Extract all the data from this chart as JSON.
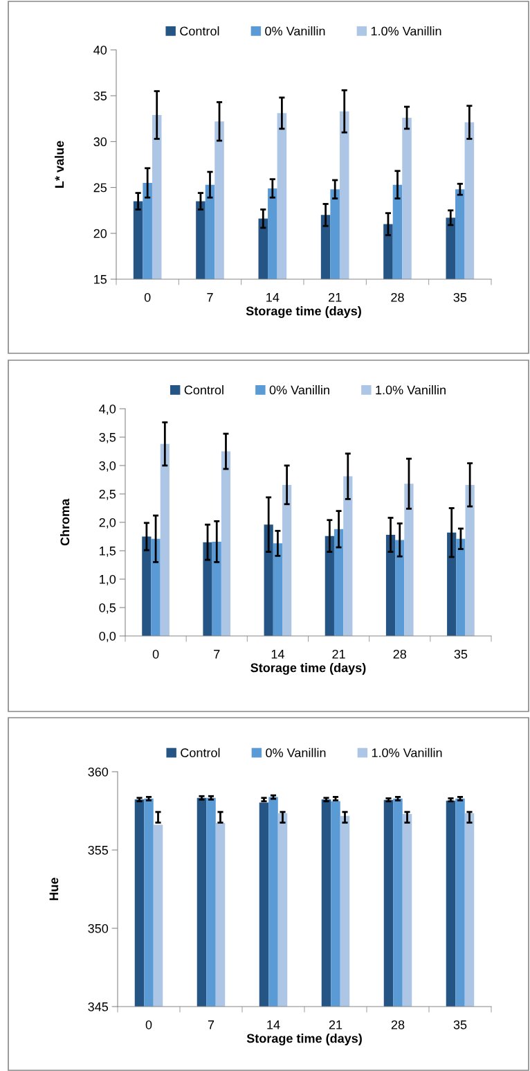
{
  "chart_data": [
    {
      "type": "bar",
      "xlabel": "Storage time (days)",
      "ylabel": "L* value",
      "categories": [
        "0",
        "7",
        "14",
        "21",
        "28",
        "35"
      ],
      "ylim": [
        15,
        40
      ],
      "yticks": [
        15,
        20,
        25,
        30,
        35,
        40
      ],
      "grid": false,
      "legend": "top",
      "series": [
        {
          "name": "Control",
          "color": "#255585",
          "values": [
            23.5,
            23.5,
            21.6,
            22.0,
            21.0,
            21.7
          ],
          "errors": [
            0.9,
            0.9,
            1.0,
            1.2,
            1.2,
            0.8
          ]
        },
        {
          "name": "0% Vanillin",
          "color": "#5b9bd5",
          "values": [
            25.5,
            25.3,
            24.9,
            24.8,
            25.3,
            24.8
          ],
          "errors": [
            1.6,
            1.4,
            1.0,
            1.0,
            1.5,
            0.6
          ]
        },
        {
          "name": "1.0% Vanillin",
          "color": "#adc6e5",
          "values": [
            32.9,
            32.2,
            33.1,
            33.3,
            32.6,
            32.1
          ],
          "errors": [
            2.6,
            2.1,
            1.7,
            2.3,
            1.2,
            1.8
          ]
        }
      ]
    },
    {
      "type": "bar",
      "xlabel": "Storage time (days)",
      "ylabel": "Chroma",
      "categories": [
        "0",
        "7",
        "14",
        "21",
        "28",
        "35"
      ],
      "ylim": [
        0,
        4
      ],
      "yticks": [
        {
          "value": 0,
          "label": "0,0"
        },
        {
          "value": 0.5,
          "label": "0,5"
        },
        {
          "value": 1,
          "label": "1,0"
        },
        {
          "value": 1.5,
          "label": "1,5"
        },
        {
          "value": 2,
          "label": "2,0"
        },
        {
          "value": 2.5,
          "label": "2,5"
        },
        {
          "value": 3,
          "label": "3,0"
        },
        {
          "value": 3.5,
          "label": "3,5"
        },
        {
          "value": 4,
          "label": "4,0"
        }
      ],
      "grid": false,
      "legend": "top",
      "series": [
        {
          "name": "Control",
          "color": "#255585",
          "values": [
            1.75,
            1.65,
            1.96,
            1.76,
            1.78,
            1.82
          ],
          "errors": [
            0.24,
            0.31,
            0.48,
            0.28,
            0.3,
            0.43
          ]
        },
        {
          "name": "0% Vanillin",
          "color": "#5b9bd5",
          "values": [
            1.71,
            1.66,
            1.63,
            1.88,
            1.69,
            1.71
          ],
          "errors": [
            0.41,
            0.36,
            0.22,
            0.32,
            0.29,
            0.18
          ]
        },
        {
          "name": "1.0% Vanillin",
          "color": "#adc6e5",
          "values": [
            3.38,
            3.25,
            2.66,
            2.81,
            2.68,
            2.66
          ],
          "errors": [
            0.38,
            0.31,
            0.34,
            0.4,
            0.44,
            0.38
          ]
        }
      ]
    },
    {
      "type": "bar",
      "xlabel": "Storage time (days)",
      "ylabel": "Hue",
      "categories": [
        "0",
        "7",
        "14",
        "21",
        "28",
        "35"
      ],
      "ylim": [
        345,
        360
      ],
      "yticks": [
        345,
        350,
        355,
        360
      ],
      "grid": false,
      "legend": "top",
      "series": [
        {
          "name": "Control",
          "color": "#255585",
          "values": [
            358.23,
            358.33,
            358.03,
            358.23,
            358.2,
            358.15
          ],
          "errors": [
            [
              358.11,
              358.33
            ],
            [
              358.22,
              358.44
            ],
            [
              358.11,
              358.33
            ],
            [
              358.11,
              358.33
            ],
            [
              358.11,
              358.3
            ],
            [
              358.11,
              358.3
            ]
          ]
        },
        {
          "name": "0% Vanillin",
          "color": "#5b9bd5",
          "values": [
            358.28,
            358.33,
            358.38,
            358.12,
            358.28,
            358.28
          ],
          "errors": [
            [
              358.17,
              358.39
            ],
            [
              358.22,
              358.44
            ],
            [
              358.27,
              358.49
            ],
            [
              358.17,
              358.39
            ],
            [
              358.17,
              358.39
            ],
            [
              358.17,
              358.39
            ]
          ]
        },
        {
          "name": "1.0% Vanillin",
          "color": "#adc6e5",
          "values": [
            356.61,
            356.74,
            357.35,
            357.18,
            357.3,
            357.35
          ],
          "errors": [
            [
              356.75,
              357.43
            ],
            [
              356.75,
              357.43
            ],
            [
              356.75,
              357.43
            ],
            [
              356.75,
              357.43
            ],
            [
              356.75,
              357.43
            ],
            [
              356.75,
              357.43
            ]
          ]
        }
      ]
    }
  ]
}
